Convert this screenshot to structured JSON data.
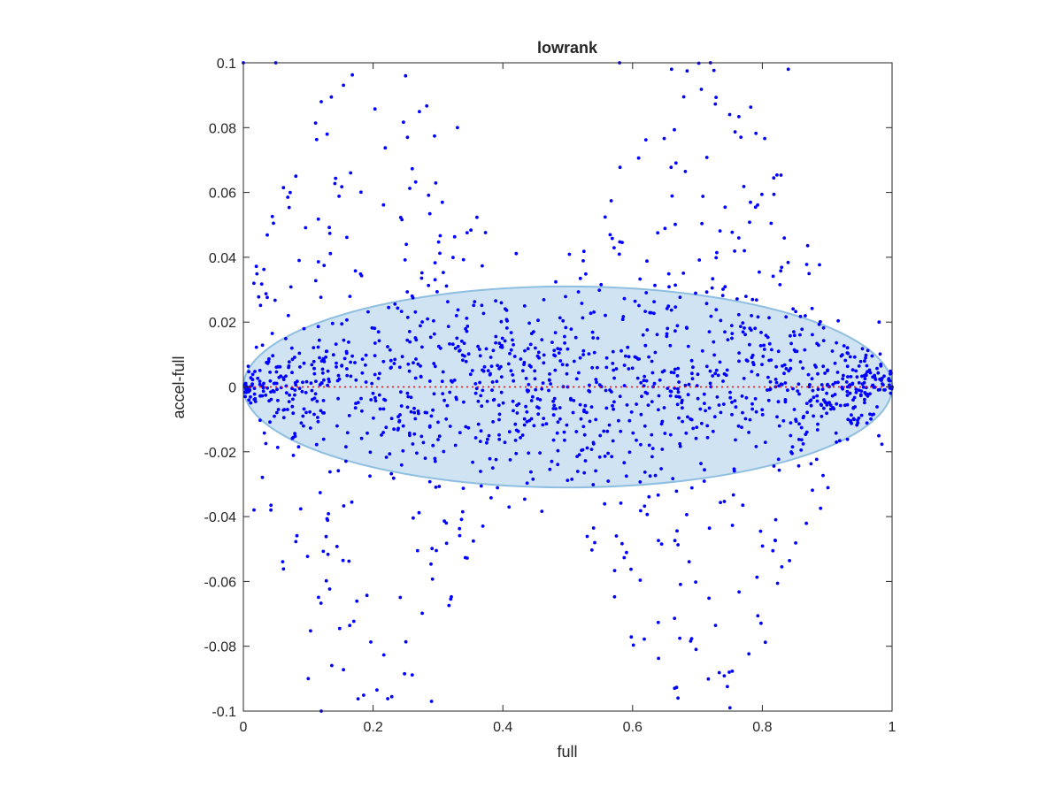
{
  "chart_data": {
    "type": "scatter",
    "title": "lowrank",
    "xlabel": "full",
    "ylabel": "accel-full",
    "xlim": [
      0,
      1
    ],
    "ylim": [
      -0.1,
      0.1
    ],
    "x_ticks": [
      0,
      0.2,
      0.4,
      0.6,
      0.8,
      1
    ],
    "x_tick_labels": [
      "0",
      "0.2",
      "0.4",
      "0.6",
      "0.8",
      "1"
    ],
    "y_ticks": [
      -0.1,
      -0.08,
      -0.06,
      -0.04,
      -0.02,
      0,
      0.02,
      0.04,
      0.06,
      0.08,
      0.1
    ],
    "y_tick_labels": [
      "-0.1",
      "-0.08",
      "-0.06",
      "-0.04",
      "-0.02",
      "0",
      "0.02",
      "0.04",
      "0.06",
      "0.08",
      "0.1"
    ],
    "grid": false,
    "box": true,
    "colors": {
      "points": "#0000ff",
      "reference_line": "#ff0000",
      "ellipse_fill": "#cfe3f2",
      "ellipse_edge": "#8fbfe0",
      "axes": "#262626"
    },
    "reference_line": {
      "y": 0,
      "style": "dotted"
    },
    "ellipse": {
      "center": [
        0.5,
        0
      ],
      "half_width": 0.5,
      "half_height": 0.031
    },
    "point_count": 1500,
    "sample_points": [
      [
        0.0,
        0.1
      ],
      [
        0.05,
        0.1
      ],
      [
        0.12,
        0.088
      ],
      [
        0.25,
        0.096
      ],
      [
        0.33,
        0.08
      ],
      [
        0.58,
        0.1
      ],
      [
        0.66,
        0.098
      ],
      [
        0.72,
        0.1
      ],
      [
        0.84,
        0.098
      ],
      [
        0.1,
        -0.09
      ],
      [
        0.12,
        -0.1
      ],
      [
        0.29,
        -0.097
      ],
      [
        0.67,
        -0.096
      ],
      [
        0.75,
        -0.099
      ],
      [
        0.5,
        0.0
      ],
      [
        0.45,
        0.012
      ],
      [
        0.55,
        -0.015
      ],
      [
        0.98,
        0.02
      ],
      [
        1.0,
        0.0
      ],
      [
        0.01,
        0.0
      ]
    ]
  }
}
